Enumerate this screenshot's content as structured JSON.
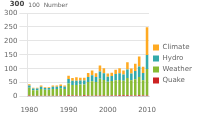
{
  "chart_data": {
    "type": "bar",
    "stacked": true,
    "categories": [
      "1980",
      null,
      null,
      null,
      null,
      null,
      null,
      null,
      null,
      null,
      "1990",
      null,
      null,
      null,
      null,
      null,
      null,
      null,
      null,
      null,
      "2000",
      null,
      null,
      null,
      null,
      null,
      null,
      null,
      null,
      null,
      "2010"
    ],
    "series": [
      {
        "name": "Quake",
        "color": "#cc2222",
        "values": [
          4,
          3,
          3,
          3,
          3,
          3,
          3,
          3,
          4,
          3,
          5,
          4,
          4,
          3,
          5,
          4,
          3,
          4,
          4,
          4,
          3,
          4,
          4,
          5,
          5,
          5,
          4,
          4,
          5,
          4,
          4
        ]
      },
      {
        "name": "Weather",
        "color": "#88bb33",
        "values": [
          28,
          20,
          20,
          24,
          22,
          22,
          24,
          24,
          26,
          24,
          42,
          38,
          38,
          40,
          38,
          48,
          52,
          48,
          60,
          56,
          50,
          52,
          55,
          55,
          52,
          62,
          55,
          58,
          65,
          55,
          95
        ]
      },
      {
        "name": "Hydro",
        "color": "#33aaaa",
        "values": [
          8,
          6,
          6,
          8,
          6,
          6,
          8,
          8,
          8,
          8,
          16,
          15,
          15,
          15,
          15,
          18,
          22,
          18,
          26,
          24,
          18,
          18,
          22,
          24,
          22,
          30,
          24,
          30,
          38,
          26,
          50
        ]
      },
      {
        "name": "Climate",
        "color": "#ffaa22",
        "values": [
          4,
          3,
          3,
          5,
          3,
          3,
          5,
          5,
          5,
          5,
          12,
          10,
          12,
          10,
          10,
          15,
          17,
          14,
          22,
          18,
          12,
          12,
          15,
          18,
          15,
          26,
          18,
          26,
          36,
          22,
          100
        ]
      }
    ],
    "ylim": [
      0,
      300
    ],
    "yticks": [
      0,
      50,
      100,
      150,
      200,
      250,
      300
    ],
    "grid": true,
    "legend": "right",
    "annotations": [
      "300",
      "100  Number"
    ]
  }
}
